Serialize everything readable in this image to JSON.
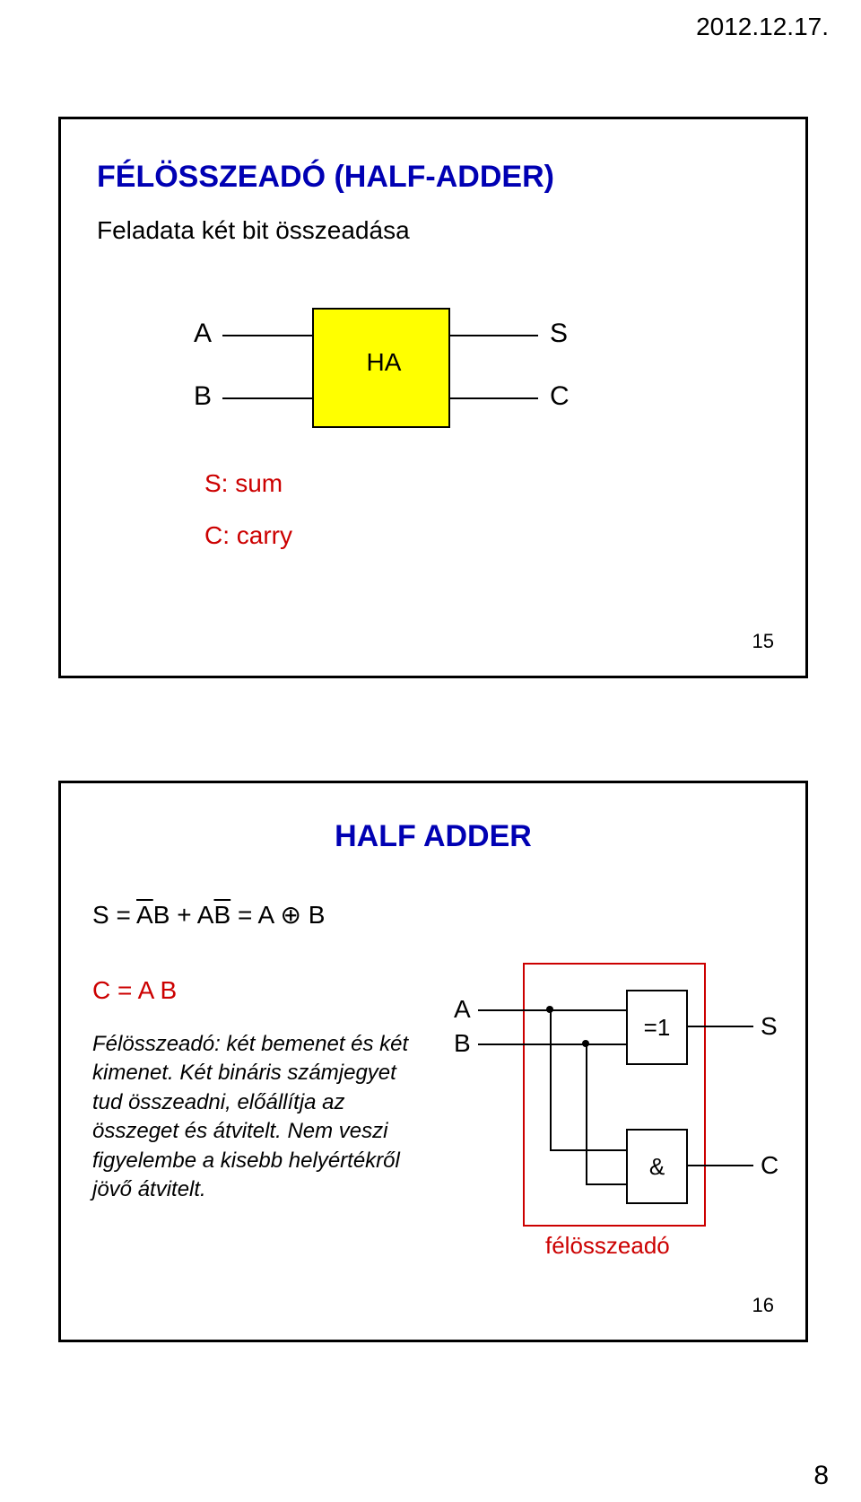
{
  "date": "2012.12.17.",
  "slide1": {
    "title": "FÉLÖSSZEADÓ (HALF-ADDER)",
    "subtitle": "Feladata két bit összeadása",
    "block_color": "#ffff00",
    "ha_label": "HA",
    "inputs": {
      "A": "A",
      "B": "B"
    },
    "outputs": {
      "S": "S",
      "C": "C"
    },
    "legend": {
      "sum": "S: sum",
      "carry": "C: carry"
    },
    "slide_number": "15"
  },
  "slide2": {
    "title": "HALF ADDER",
    "eq1_plain": "S = AB + AB = A ⊕ B",
    "eq1_parts": {
      "lead": "S = ",
      "t1a": "A",
      "t1b": "B",
      "mid": " + ",
      "t2a": "A",
      "t2b": "B",
      "tail": " = A ⊕ B"
    },
    "eq2": "C = A B",
    "desc": "Félösszeadó: két bemenet és két kimenet. Két bináris számjegyet tud összeadni, előállítja az összeget és átvitelt. Nem veszi figyelembe a kisebb helyértékről jövő átvitelt.",
    "gate_xor": "=1",
    "gate_and": "&",
    "outline_color": "#cc0000",
    "labels": {
      "A": "A",
      "B": "B",
      "S": "S",
      "C": "C"
    },
    "block_label": "félösszeadó",
    "slide_number": "16"
  },
  "page_number": "8"
}
